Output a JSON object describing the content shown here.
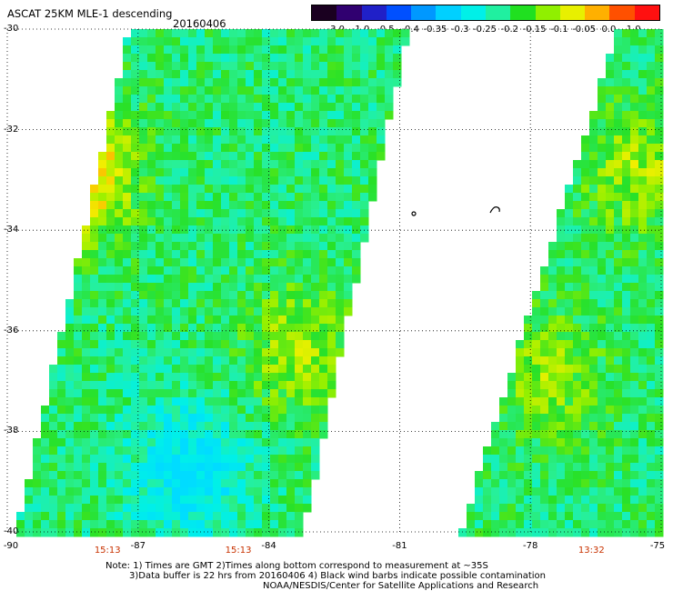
{
  "header": {
    "title": "ASCAT 25KM MLE-1 descending",
    "date": "20160406"
  },
  "colorbar": {
    "ticks": [
      "-3.0",
      "-1.0",
      "-0.5",
      "-0.4",
      "-0.35",
      "-0.3",
      "-0.25",
      "-0.2",
      "-0.15",
      "-0.1",
      "-0.05",
      "0.0",
      "1.0"
    ],
    "colors": [
      "#1a0020",
      "#300070",
      "#2020c8",
      "#0050ff",
      "#0098ff",
      "#00d0ff",
      "#00f0e8",
      "#20f0a0",
      "#20e020",
      "#90f000",
      "#e8f000",
      "#ffb000",
      "#ff5000",
      "#ff1010"
    ]
  },
  "map": {
    "lat_labels": [
      "-30",
      "-32",
      "-34",
      "-36",
      "-38",
      "-40"
    ],
    "lon_labels": [
      "-90",
      "-87",
      "-84",
      "-81",
      "-78",
      "-75"
    ],
    "pass_times": [
      "15:13",
      "15:13",
      "13:32"
    ],
    "pass_time_lons": [
      -87.7,
      -84.7,
      -76.6
    ],
    "lon_range": [
      -90,
      -75
    ],
    "lat_range": [
      -30,
      -40
    ],
    "swaths": [
      {
        "name": "west swath",
        "lon_left_top": -87.1,
        "lon_left_bottom": -89.7,
        "lon_right_top": -80.9,
        "lon_right_bottom": -83.3
      },
      {
        "name": "east swath",
        "lon_left_top": -75.9,
        "lon_left_bottom": -79.5,
        "lon_right_top": -75,
        "lon_right_bottom": -75
      }
    ],
    "features": [
      {
        "name": "orange patch west coast",
        "lon": -88.5,
        "lat": -32.8,
        "value": 0.05
      },
      {
        "name": "yellow patch",
        "lon": -83.3,
        "lat": -36.4,
        "value": -0.07
      },
      {
        "name": "cyan region",
        "lon": -85.8,
        "lat": -38.8,
        "value": -0.27
      },
      {
        "name": "yellow patch east",
        "lon": -75.5,
        "lat": -32.8,
        "value": -0.07
      },
      {
        "name": "yellow patch east south",
        "lon": -77.6,
        "lat": -36.9,
        "value": -0.08
      }
    ]
  },
  "notes": {
    "line1": "Note: 1) Times are GMT 2)Times along bottom correspond to measurement at ~35S",
    "line2": "3)Data buffer is 22 hrs from 20160406 4) Black wind barbs indicate possible contamination",
    "line3": "NOAA/NESDIS/Center for Satellite Applications and Research"
  }
}
